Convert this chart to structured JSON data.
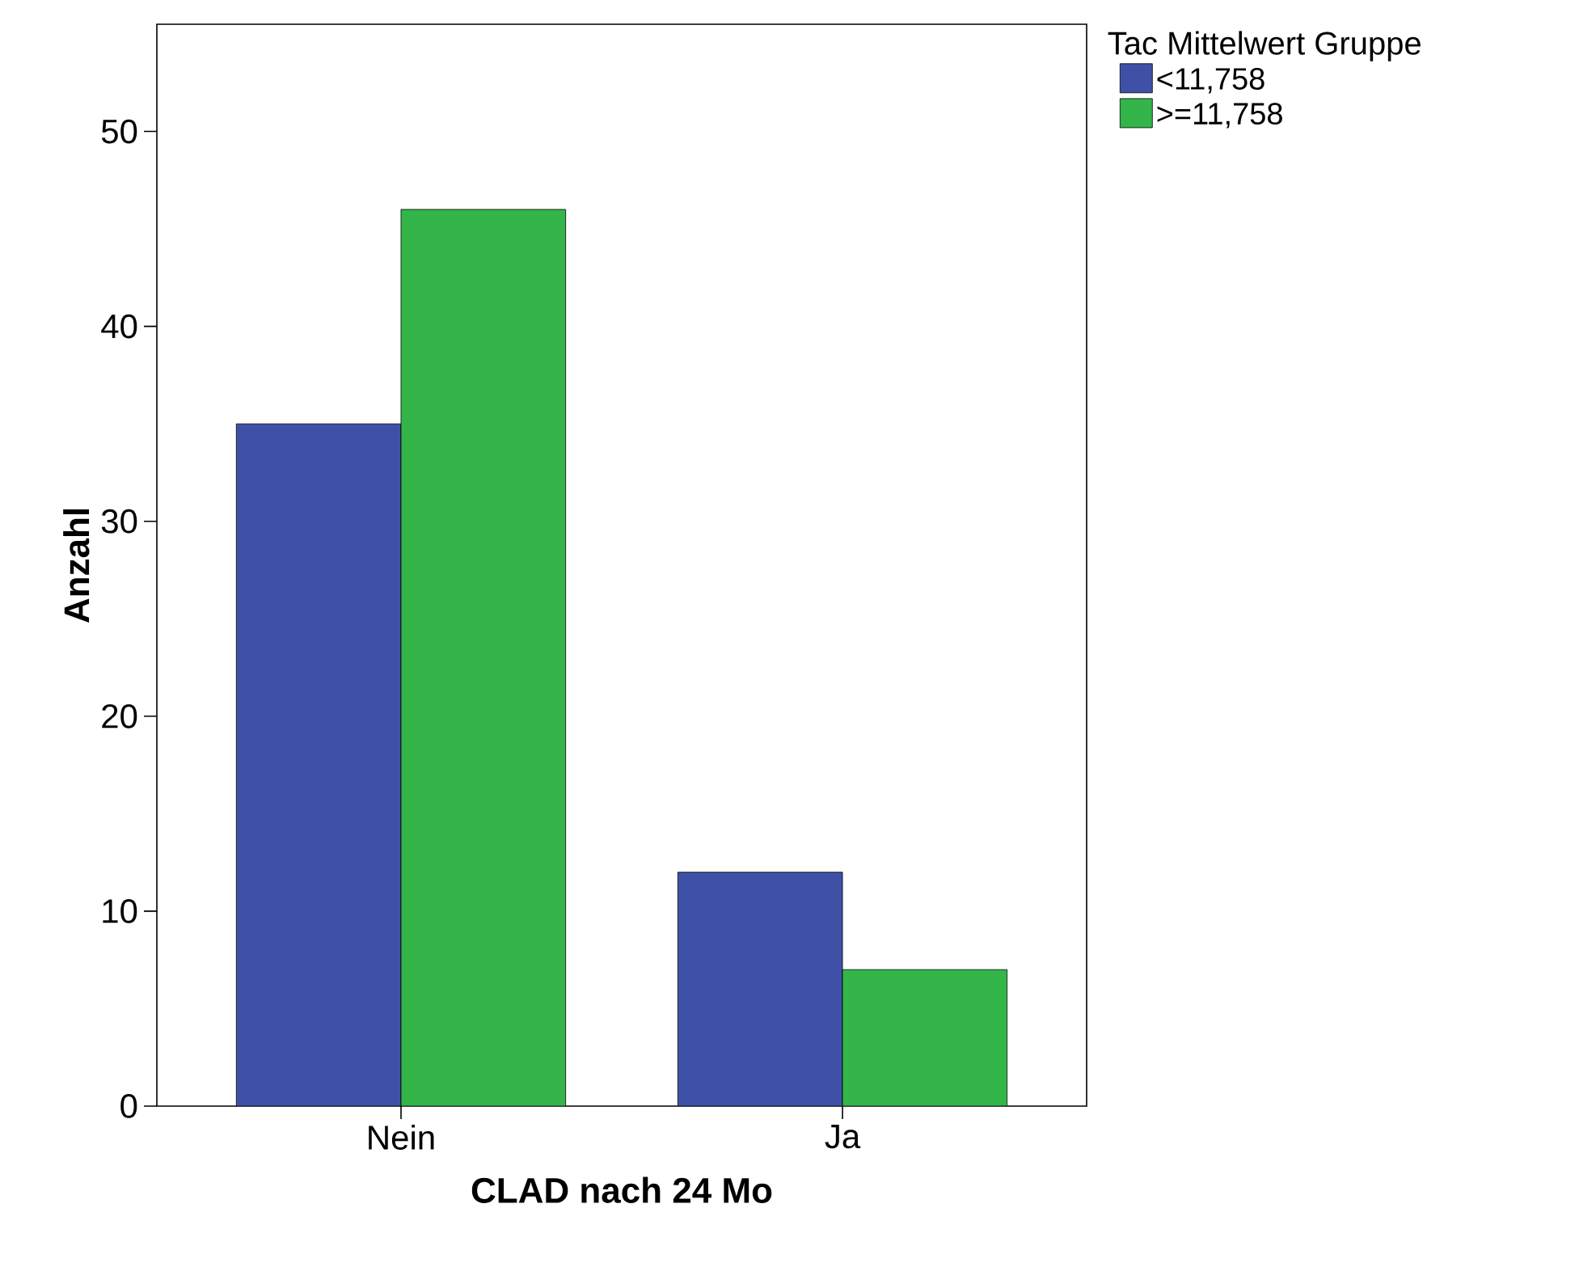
{
  "chart_data": {
    "type": "bar",
    "xlabel": "CLAD nach 24 Mo",
    "ylabel": "Anzahl",
    "legend_title": "Tac Mittelwert Gruppe",
    "categories": [
      "Nein",
      "Ja"
    ],
    "series": [
      {
        "name": "<11,758",
        "color": "#3f51a6",
        "values": [
          35,
          12
        ]
      },
      {
        "name": ">=11,758",
        "color": "#33b54a",
        "values": [
          46,
          7
        ]
      }
    ],
    "ylim": [
      0,
      55.5
    ],
    "yticks": [
      0,
      10,
      20,
      30,
      40,
      50
    ],
    "grid": false,
    "legend": "top right"
  }
}
